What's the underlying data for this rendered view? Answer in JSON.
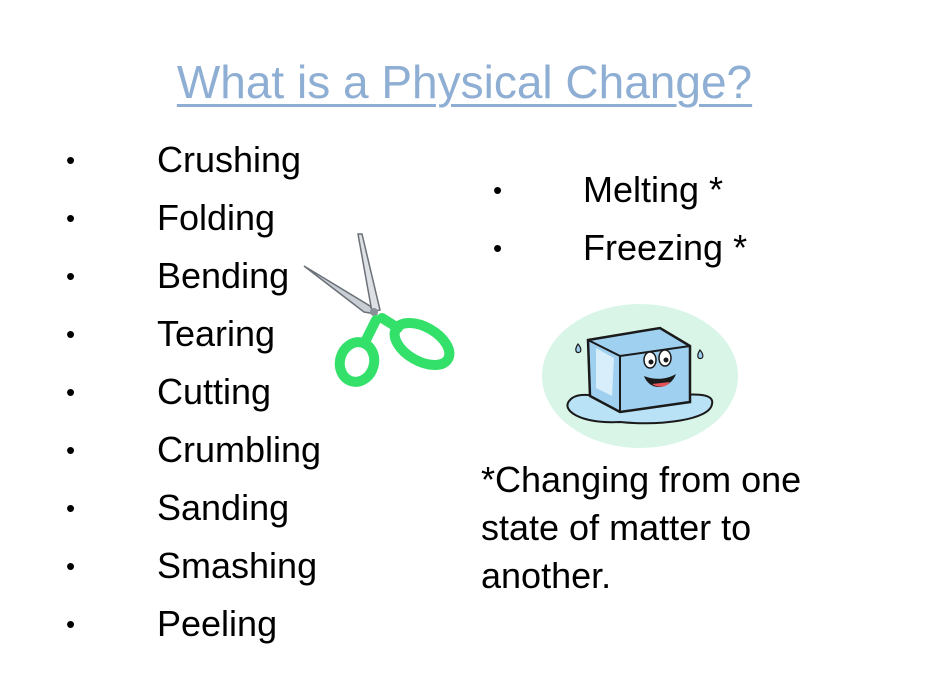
{
  "slide": {
    "title": "What is a Physical Change?",
    "left_items": [
      "Crushing",
      "Folding",
      "Bending",
      "Tearing",
      "Cutting",
      "Crumbling",
      "Sanding",
      "Smashing",
      "Peeling"
    ],
    "right_items": [
      "Melting *",
      "Freezing *"
    ],
    "bullet_glyph": "•",
    "note": "*Changing from one state of matter to another.",
    "colors": {
      "title": "#8eaed3",
      "scissors_handle": "#33e06a",
      "ice_cube": "#9fd0f0",
      "ice_background": "#d9f5e8"
    },
    "icons": {
      "scissors": "scissors-icon",
      "ice": "ice-cube-icon"
    }
  }
}
